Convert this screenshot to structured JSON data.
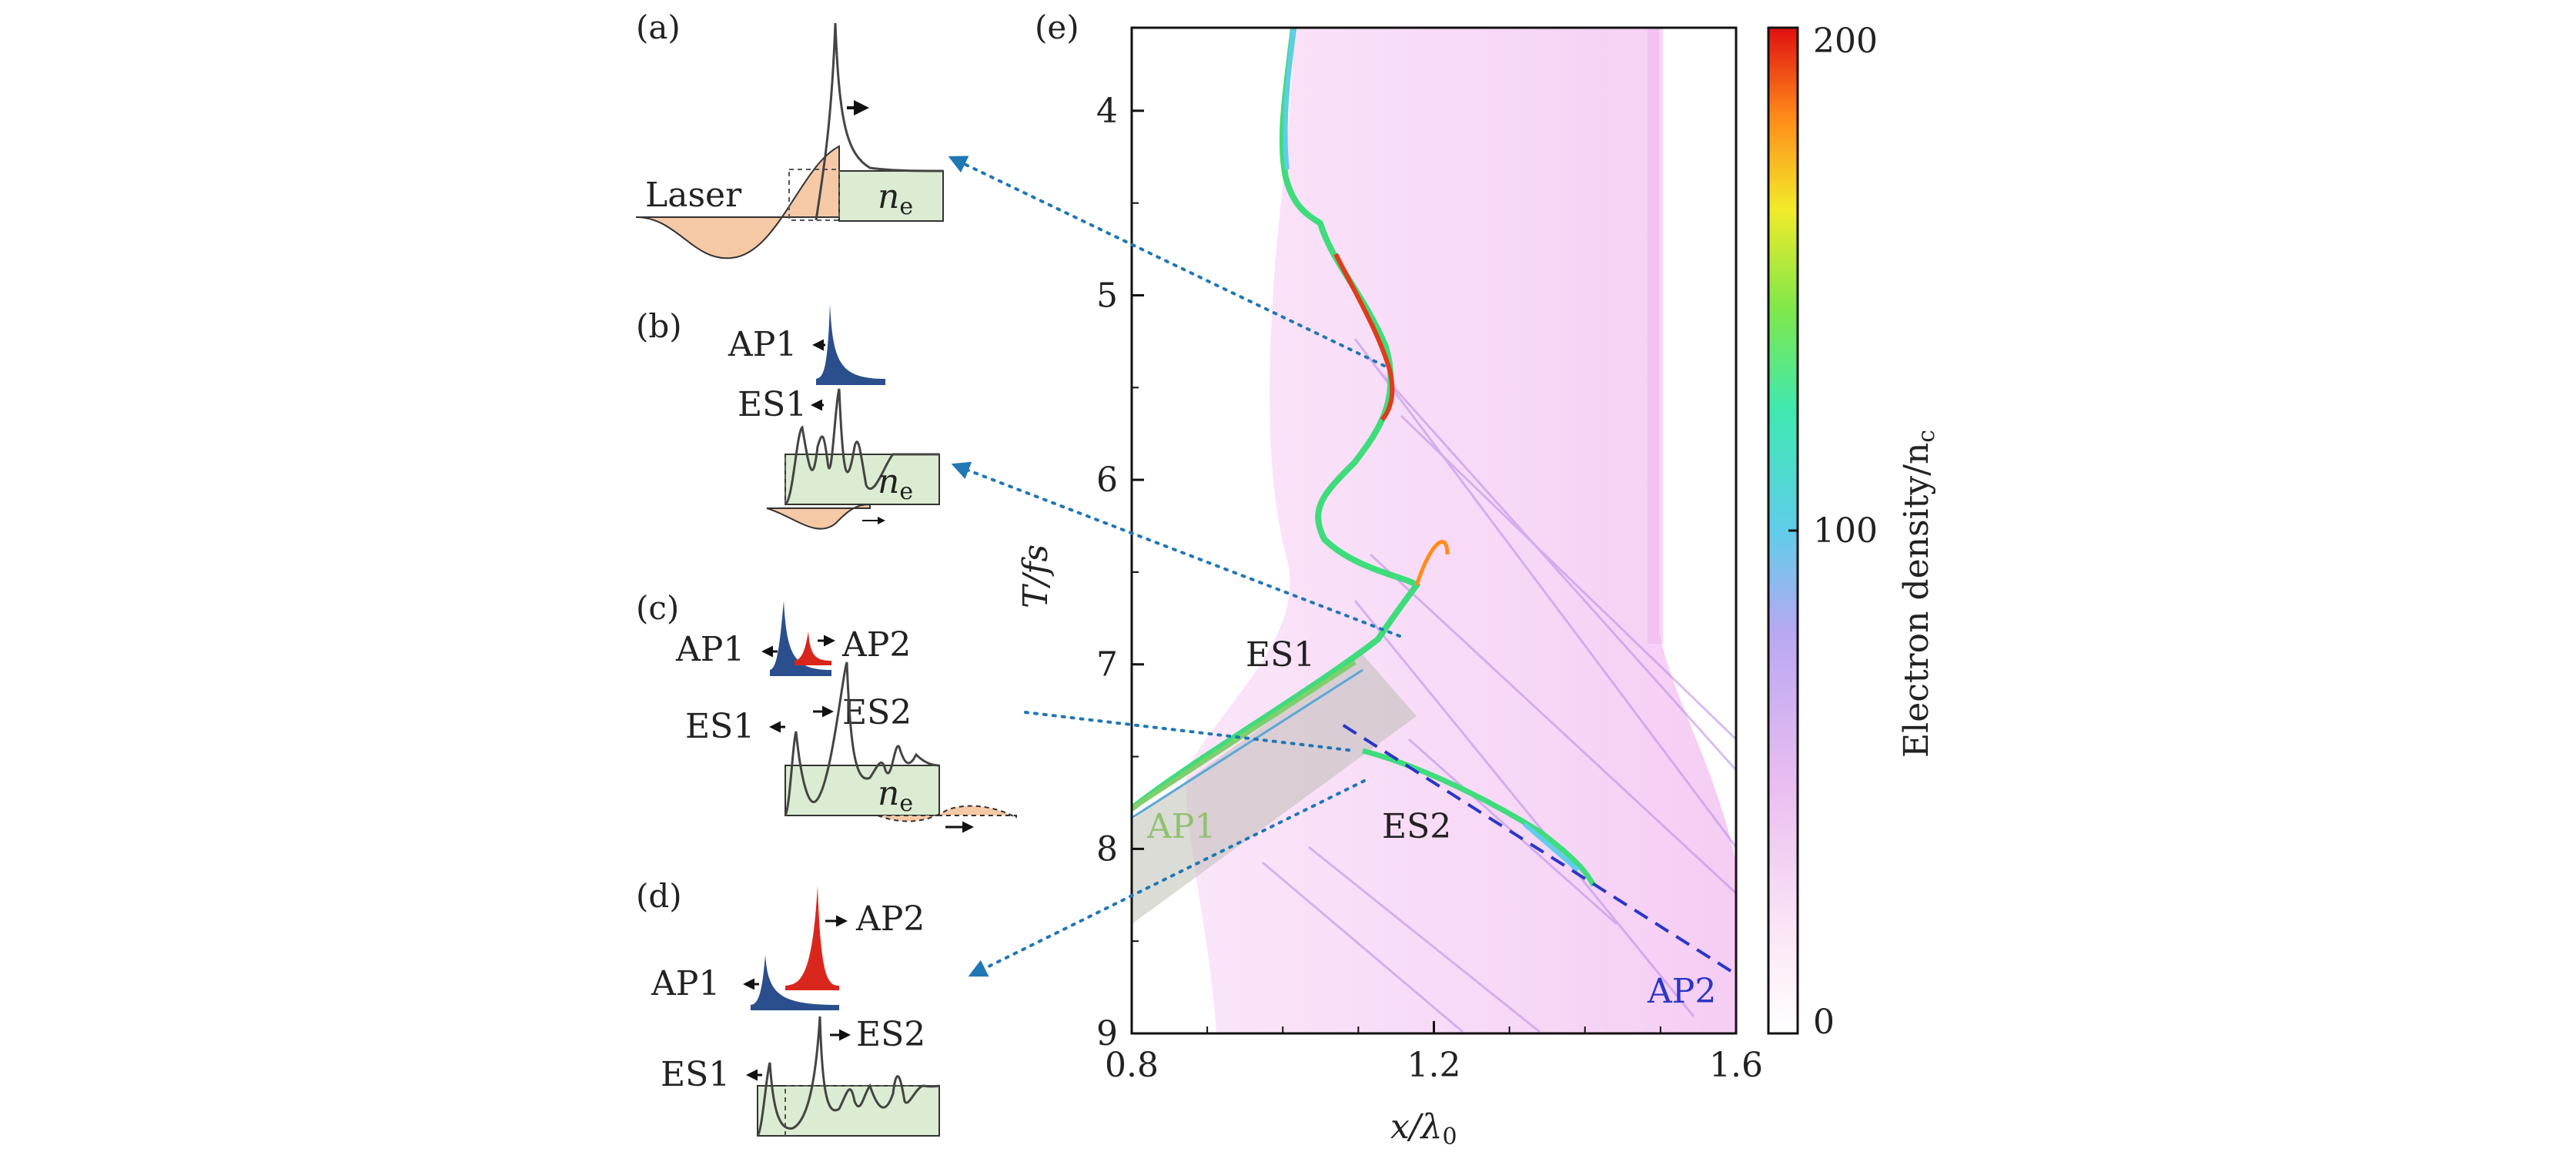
{
  "panels": {
    "a": {
      "label": "(a)",
      "laser": "Laser",
      "ne": "n",
      "ne_sub": "e"
    },
    "b": {
      "label": "(b)",
      "ap1": "AP1",
      "es1": "ES1",
      "ne": "n",
      "ne_sub": "e"
    },
    "c": {
      "label": "(c)",
      "ap1": "AP1",
      "ap2": "AP2",
      "es1": "ES1",
      "es2": "ES2",
      "ne": "n",
      "ne_sub": "e"
    },
    "d": {
      "label": "(d)",
      "ap1": "AP1",
      "ap2": "AP2",
      "es1": "ES1",
      "es2": "ES2"
    },
    "e": {
      "label": "(e)"
    }
  },
  "colors": {
    "laser_fill": "#f6c9a6",
    "plasma_fill": "#dcecd2",
    "ap1_blue": "#2b4e8c",
    "ap2_red": "#d9261c",
    "arrow_blue": "#1f77b4",
    "ap2_label": "#2a36c8",
    "ap1_label": "#8fc26e"
  },
  "chart_data": {
    "type": "heatmap",
    "title": "",
    "xlabel": "x/λ",
    "xlabel_sub": "0",
    "ylabel": "T/fs",
    "xlim": [
      0.8,
      1.6
    ],
    "ylim": [
      9,
      3.55
    ],
    "x_ticks": [
      "0.8",
      "1.2",
      "1.6"
    ],
    "x_tick_values": [
      0.8,
      1.2,
      1.6
    ],
    "y_ticks": [
      "4",
      "5",
      "6",
      "7",
      "8",
      "9"
    ],
    "y_tick_values": [
      4,
      5,
      6,
      7,
      8,
      9
    ],
    "colorbar": {
      "label": "Electron density/n",
      "label_sub": "c",
      "range": [
        0,
        200
      ],
      "ticks": [
        "0",
        "100",
        "200"
      ],
      "tick_values": [
        0,
        100,
        200
      ]
    },
    "annotations": {
      "es1": "ES1",
      "es2": "ES2",
      "ap1": "AP1",
      "ap2": "AP2"
    },
    "ap2_line": {
      "x": [
        1.08,
        1.6
      ],
      "T": [
        7.33,
        8.68
      ]
    }
  }
}
